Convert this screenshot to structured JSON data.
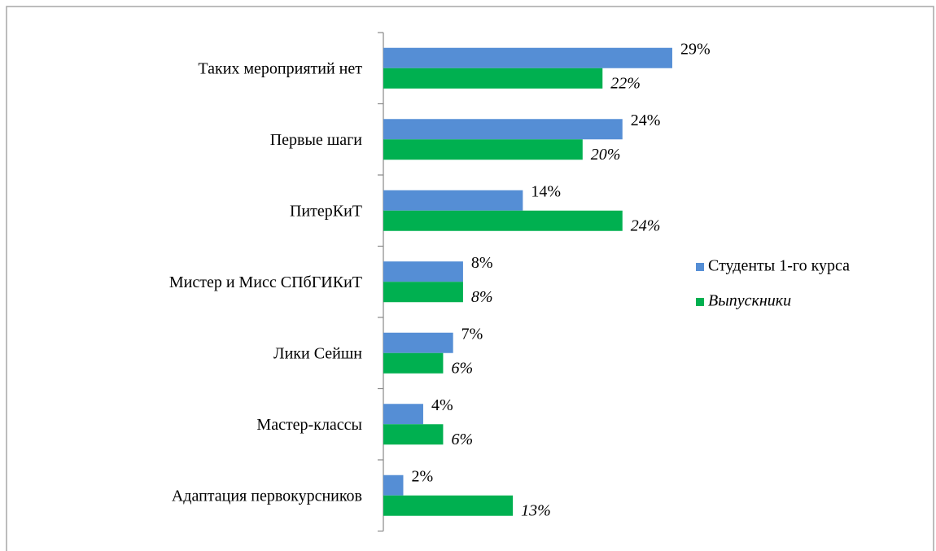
{
  "chart_data": {
    "type": "bar",
    "orientation": "horizontal",
    "categories": [
      "Таких мероприятий нет",
      "Первые шаги",
      "ПитерКиТ",
      "Мистер и Мисс СПбГИКиТ",
      "Лики Сейшн",
      "Мастер-классы",
      "Адаптация первокурсников"
    ],
    "series": [
      {
        "name": "Студенты 1-го курса",
        "color": "#558ed5",
        "values": [
          29,
          24,
          14,
          8,
          7,
          4,
          2
        ],
        "value_labels": [
          "29%",
          "24%",
          "14%",
          "8%",
          "7%",
          "4%",
          "2%"
        ]
      },
      {
        "name": "Выпускники",
        "color": "#00b050",
        "values": [
          22,
          20,
          24,
          8,
          6,
          6,
          13
        ],
        "value_labels": [
          "22%",
          "20%",
          "24%",
          "8%",
          "6%",
          "6%",
          "13%"
        ]
      }
    ],
    "legend": "right"
  }
}
